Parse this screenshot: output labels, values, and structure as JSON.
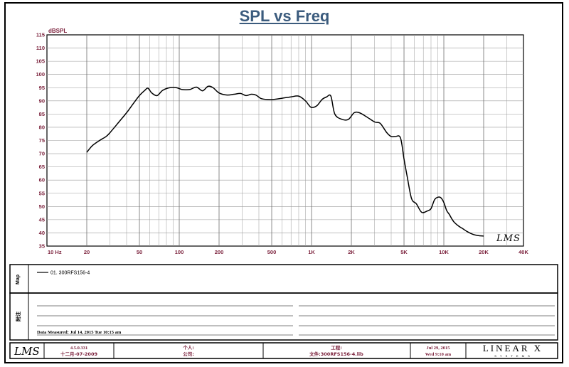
{
  "chart_data": {
    "type": "line",
    "title": "SPL vs Freq",
    "ylabel": "dBSPL",
    "xlabel": "",
    "xscale": "log",
    "xlim": [
      10,
      40000
    ],
    "ylim": [
      35,
      115
    ],
    "y_ticks": [
      35,
      40,
      45,
      50,
      55,
      60,
      65,
      70,
      75,
      80,
      85,
      90,
      95,
      100,
      105,
      110,
      115
    ],
    "x_tick_values": [
      10,
      20,
      50,
      100,
      200,
      500,
      1000,
      2000,
      5000,
      10000,
      20000,
      40000
    ],
    "x_tick_labels": [
      "10  Hz",
      "20",
      "50",
      "100",
      "200",
      "500",
      "1K",
      "2K",
      "5K",
      "10K",
      "20K",
      "40K"
    ],
    "grid": true,
    "series": [
      {
        "name": "01.  300RFS156-4",
        "x": [
          20,
          22,
          25,
          28,
          30,
          35,
          40,
          45,
          50,
          55,
          58,
          62,
          68,
          75,
          85,
          95,
          105,
          120,
          135,
          150,
          165,
          180,
          200,
          230,
          260,
          290,
          320,
          350,
          380,
          420,
          500,
          600,
          700,
          800,
          900,
          950,
          1000,
          1100,
          1200,
          1300,
          1400,
          1500,
          1700,
          1900,
          2100,
          2300,
          2600,
          3000,
          3300,
          3700,
          4000,
          4300,
          4700,
          5000,
          5300,
          5700,
          6200,
          6800,
          7500,
          8000,
          8500,
          9000,
          9500,
          10000,
          10500,
          11000,
          11500,
          12000,
          13000,
          14000,
          15000,
          16500,
          18000,
          20000
        ],
        "y": [
          70.5,
          73,
          75,
          76.5,
          78,
          82,
          85.5,
          89,
          92,
          94,
          94.8,
          93,
          92,
          94,
          95,
          95,
          94.3,
          94.3,
          95.2,
          93.8,
          95.5,
          95,
          93,
          92.2,
          92.5,
          92.8,
          92,
          92.5,
          92.2,
          90.8,
          90.5,
          91,
          91.5,
          91.8,
          90,
          88.5,
          87.5,
          88.2,
          90.5,
          91.5,
          91.8,
          85,
          83,
          83,
          85.5,
          85.5,
          84,
          82,
          81.5,
          78,
          76.5,
          76.5,
          76,
          68,
          61,
          53,
          51,
          47.8,
          48.3,
          49.2,
          52.5,
          53.5,
          53.3,
          51.5,
          48.5,
          47,
          45.3,
          44,
          42.5,
          41.5,
          40.5,
          39.5,
          39,
          38.8
        ]
      }
    ]
  },
  "lms_watermark": "LMS",
  "legend": {
    "side_label": "Map",
    "entry": "01.  300RFS156-4"
  },
  "notes": {
    "side_label": "附注",
    "measured": "Data Measured: Jul 14, 2015  Tue 10:15 am"
  },
  "footer": {
    "logo": "LMS",
    "version": "4.5.0.331",
    "version_date": "十二月-07-2009",
    "person_label": "个人:",
    "company_label": "公司:",
    "project_label": "工程:",
    "file_label": "文件:300RFS156-4.lib",
    "date": "Jul 29, 2015",
    "time": "Wed  9:10 am",
    "brand": "LINEAR X",
    "brand_sub": "S Y S T E M S"
  },
  "colors": {
    "title": "#3b5b7d",
    "axis_labels": "#7a1f3a",
    "grid": "#9a9a9a",
    "curve": "#000000"
  }
}
